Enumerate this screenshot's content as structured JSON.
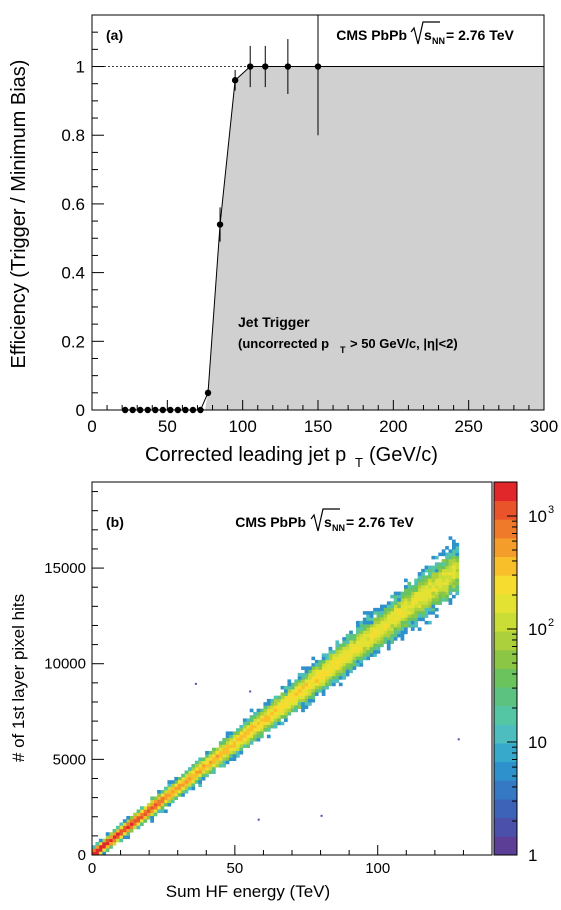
{
  "chart_data": [
    {
      "type": "scatter",
      "panel_label": "(a)",
      "title_prefix": "CMS PbPb",
      "energy_sym": "s",
      "energy_sub": "NN",
      "energy_value": "= 2.76 TeV",
      "xlabel": "Corrected leading jet p",
      "xlabel_sub": "T",
      "xlabel_unit": "(GeV/c)",
      "ylabel": "Efficiency (Trigger / Minimum Bias)",
      "xlim": [
        0,
        300
      ],
      "ylim": [
        0,
        1.15
      ],
      "x_ticks": [
        0,
        50,
        100,
        150,
        200,
        250,
        300
      ],
      "y_ticks": [
        0,
        0.2,
        0.4,
        0.6,
        0.8,
        1
      ],
      "x_tick_labels": [
        "0",
        "50",
        "100",
        "150",
        "200",
        "250",
        "300"
      ],
      "y_tick_labels": [
        "0",
        "0.2",
        "0.4",
        "0.6",
        "0.8",
        "1"
      ],
      "reference_line": 1,
      "annotation_line1": "Jet Trigger",
      "annotation_line2_pre": "(uncorrected p",
      "annotation_line2_sub": "T",
      "annotation_line2_post": "> 50 GeV/c, |η|<2)",
      "shaded_region": {
        "x_start": 75,
        "x_end": 300,
        "y": 1
      },
      "points": [
        {
          "x": 22,
          "y": 0,
          "err": 0
        },
        {
          "x": 27,
          "y": 0,
          "err": 0
        },
        {
          "x": 32,
          "y": 0,
          "err": 0
        },
        {
          "x": 37,
          "y": 0,
          "err": 0
        },
        {
          "x": 42,
          "y": 0,
          "err": 0
        },
        {
          "x": 47,
          "y": 0,
          "err": 0
        },
        {
          "x": 52,
          "y": 0,
          "err": 0
        },
        {
          "x": 57,
          "y": 0,
          "err": 0
        },
        {
          "x": 62,
          "y": 0,
          "err": 0
        },
        {
          "x": 67,
          "y": 0,
          "err": 0
        },
        {
          "x": 72,
          "y": 0,
          "err": 0
        },
        {
          "x": 77,
          "y": 0.05,
          "err": 0.01
        },
        {
          "x": 85,
          "y": 0.54,
          "err": 0.05
        },
        {
          "x": 95,
          "y": 0.96,
          "err": 0.03
        },
        {
          "x": 105,
          "y": 1.0,
          "err": 0.06
        },
        {
          "x": 115,
          "y": 1.0,
          "err": 0.06
        },
        {
          "x": 130,
          "y": 1.0,
          "err": 0.08
        },
        {
          "x": 150,
          "y": 1.0,
          "err": 0.2
        }
      ]
    },
    {
      "type": "heatmap",
      "panel_label": "(b)",
      "title_prefix": "CMS PbPb",
      "energy_sym": "s",
      "energy_sub": "NN",
      "energy_value": "= 2.76 TeV",
      "xlabel": "Sum HF energy (TeV)",
      "ylabel": "# of 1st layer pixel hits",
      "xlim": [
        0,
        140
      ],
      "ylim": [
        0,
        19500
      ],
      "x_ticks": [
        0,
        50,
        100
      ],
      "y_ticks": [
        0,
        5000,
        10000,
        15000
      ],
      "x_tick_labels": [
        "0",
        "50",
        "100"
      ],
      "y_tick_labels": [
        "0",
        "5000",
        "10000",
        "15000"
      ],
      "correlation": {
        "slope_hits_per_TeV": 117,
        "x_max": 128,
        "spread_frac": 0.06
      },
      "color_scale": {
        "type": "log",
        "min": 1,
        "max": 2000,
        "labels": [
          {
            "value": 1,
            "text": "1"
          },
          {
            "value": 10,
            "text": "10"
          },
          {
            "value": 100,
            "base": "10",
            "exp": "2"
          },
          {
            "value": 1000,
            "base": "10",
            "exp": "3"
          }
        ],
        "colors": [
          "#5c3e97",
          "#4b50aa",
          "#3d63b8",
          "#3578c4",
          "#2f91cc",
          "#37aacc",
          "#4ebdbf",
          "#55c6a3",
          "#5cc280",
          "#6bc35e",
          "#8cc645",
          "#acd03c",
          "#cadc36",
          "#e3e233",
          "#f6dc2e",
          "#f9bf2b",
          "#f59d2a",
          "#ef7a2a",
          "#e9542b",
          "#e1272a"
        ]
      }
    }
  ]
}
